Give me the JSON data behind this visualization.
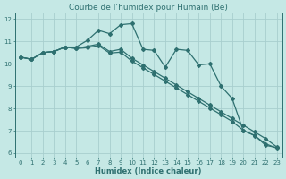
{
  "title": "Courbe de l’humidex pour Humain (Be)",
  "xlabel": "Humidex (Indice chaleur)",
  "xlim": [
    -0.5,
    23.5
  ],
  "ylim": [
    5.8,
    12.3
  ],
  "yticks": [
    6,
    7,
    8,
    9,
    10,
    11,
    12
  ],
  "xticks": [
    0,
    1,
    2,
    3,
    4,
    5,
    6,
    7,
    8,
    9,
    10,
    11,
    12,
    13,
    14,
    15,
    16,
    17,
    18,
    19,
    20,
    21,
    22,
    23
  ],
  "bg_color": "#c5e8e5",
  "grid_color": "#a8cece",
  "line_color": "#2e7070",
  "line1_y": [
    10.3,
    10.2,
    10.5,
    10.55,
    10.75,
    10.75,
    11.05,
    11.5,
    11.35,
    11.75,
    11.8,
    10.65,
    10.6,
    9.85,
    10.65,
    10.6,
    9.95,
    10.0,
    9.0,
    8.45,
    7.0,
    6.8,
    6.35,
    6.25
  ],
  "line2_y": [
    10.3,
    10.2,
    10.5,
    10.55,
    10.75,
    10.7,
    10.78,
    10.88,
    10.55,
    10.65,
    10.25,
    9.95,
    9.65,
    9.35,
    9.05,
    8.75,
    8.45,
    8.15,
    7.85,
    7.55,
    7.25,
    6.95,
    6.65,
    6.28
  ],
  "line3_y": [
    10.3,
    10.2,
    10.5,
    10.55,
    10.75,
    10.68,
    10.72,
    10.82,
    10.48,
    10.52,
    10.12,
    9.82,
    9.52,
    9.22,
    8.92,
    8.62,
    8.32,
    8.02,
    7.72,
    7.42,
    7.02,
    6.78,
    6.42,
    6.22
  ],
  "marker": "D",
  "markersize": 2.0,
  "linewidth": 0.9,
  "title_fontsize": 6.5,
  "tick_fontsize": 5.0,
  "xlabel_fontsize": 6.0
}
